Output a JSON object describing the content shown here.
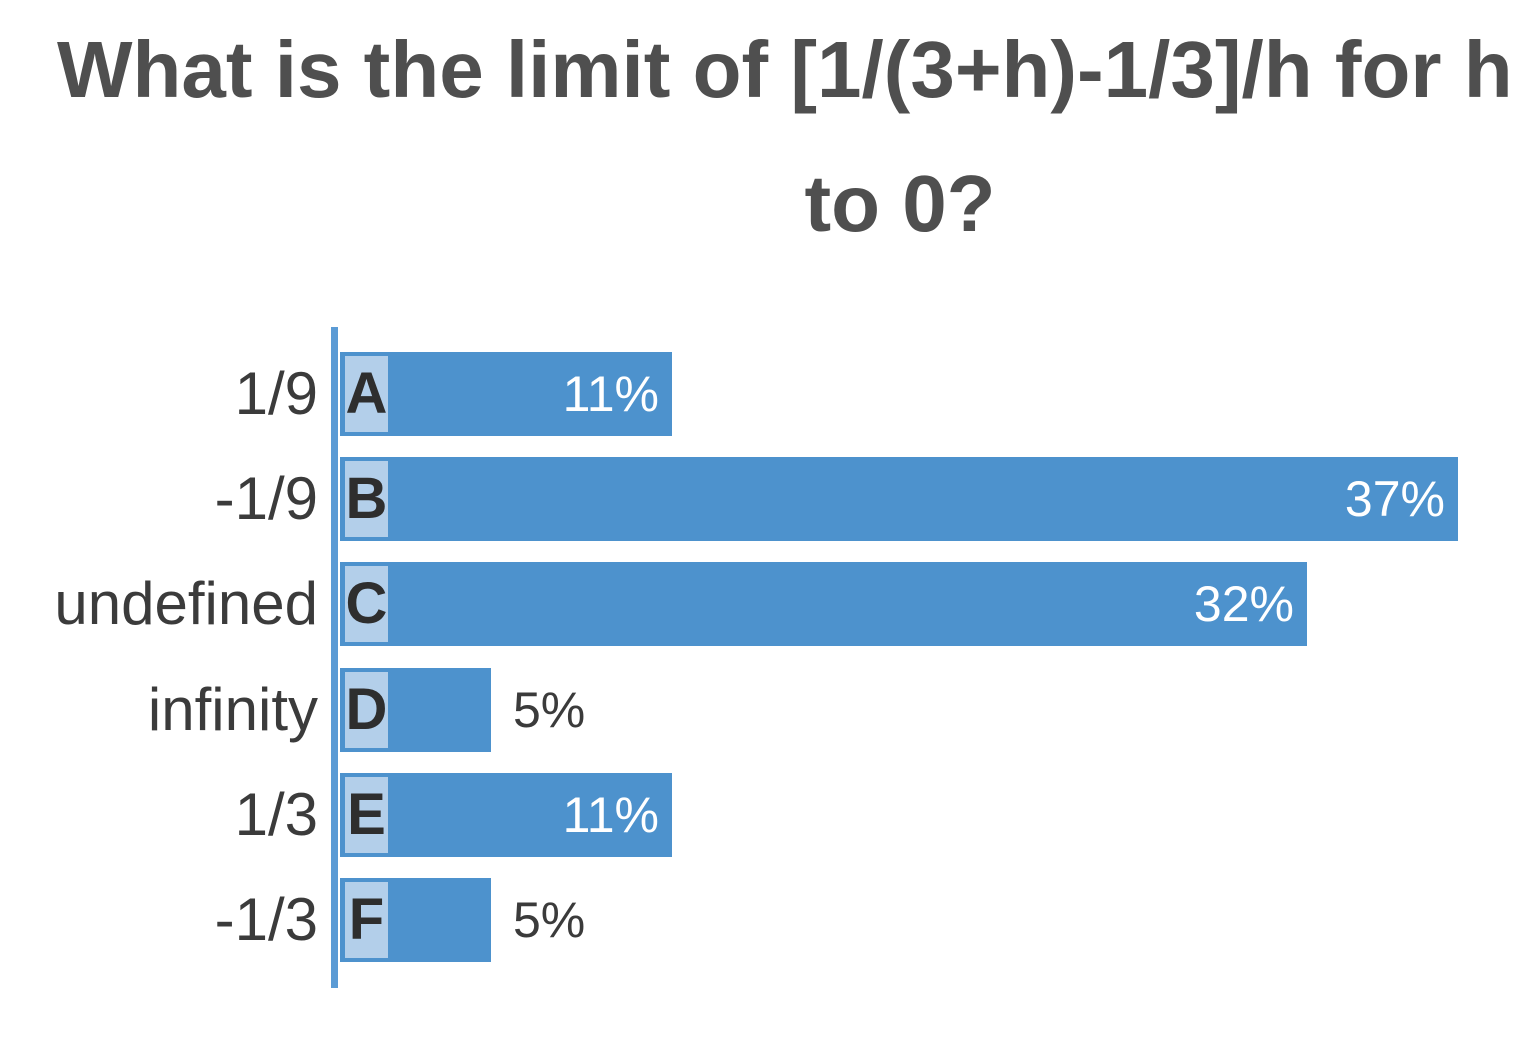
{
  "title": {
    "line1": "What is the limit of [1/(3+h)-1/3]/h for h",
    "line2": "to 0?"
  },
  "chart_data": {
    "type": "bar",
    "orientation": "horizontal",
    "title": "What is the limit of [1/(3+h)-1/3]/h for h to 0?",
    "unit": "%",
    "legend": "none",
    "grid": "off",
    "categories": [
      "1/9",
      "-1/9",
      "undefined",
      "infinity",
      "1/3",
      "-1/3"
    ],
    "options": [
      "A",
      "B",
      "C",
      "D",
      "E",
      "F"
    ],
    "values": [
      11,
      37,
      32,
      5,
      11,
      5
    ],
    "rows": [
      {
        "category": "1/9",
        "option": "A",
        "value": 11,
        "value_label": "11%",
        "value_label_position": "inside"
      },
      {
        "category": "-1/9",
        "option": "B",
        "value": 37,
        "value_label": "37%",
        "value_label_position": "inside"
      },
      {
        "category": "undefined",
        "option": "C",
        "value": 32,
        "value_label": "32%",
        "value_label_position": "inside"
      },
      {
        "category": "infinity",
        "option": "D",
        "value": 5,
        "value_label": "5%",
        "value_label_position": "outside"
      },
      {
        "category": "1/3",
        "option": "E",
        "value": 11,
        "value_label": "11%",
        "value_label_position": "inside"
      },
      {
        "category": "-1/3",
        "option": "F",
        "value": 5,
        "value_label": "5%",
        "value_label_position": "outside"
      }
    ],
    "colors": {
      "bar": "#4d92cd",
      "option_badge": "#b3cfea",
      "axis_line": "#5b9bd5",
      "title_text": "#4f4f4f",
      "category_label": "#3b3b3b",
      "option_letter": "#2e2e2e",
      "value_label_inside": "#ffffff",
      "value_label_outside": "#3b3b3b",
      "background": "#ffffff"
    }
  }
}
